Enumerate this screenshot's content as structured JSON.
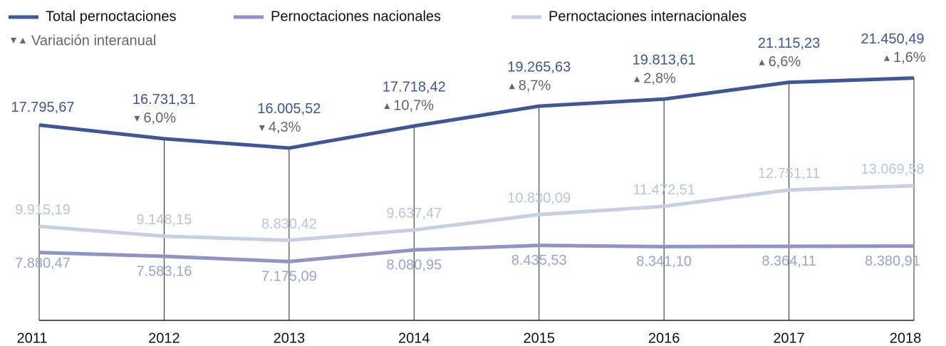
{
  "chart_data": {
    "type": "line",
    "categories": [
      "2011",
      "2012",
      "2013",
      "2014",
      "2015",
      "2016",
      "2017",
      "2018"
    ],
    "series": [
      {
        "name": "Total pernoctaciones",
        "color": "#3f5697",
        "label_color": "#3f5697",
        "values": [
          17795.67,
          16731.31,
          16005.52,
          17718.42,
          19265.63,
          19813.61,
          21115.23,
          21450.49
        ],
        "value_labels": [
          "17.795,67",
          "16.731,31",
          "16.005,52",
          "17.718,42",
          "19.265,63",
          "19.813,61",
          "21.115,23",
          "21.450,49"
        ]
      },
      {
        "name": "Pernoctaciones nacionales",
        "color": "#8e94c4",
        "label_color": "#9ea4cc",
        "values": [
          7880.47,
          7583.16,
          7175.09,
          8080.95,
          8435.53,
          8341.1,
          8364.11,
          8380.91
        ],
        "value_labels": [
          "7.880,47",
          "7.583,16",
          "7.175,09",
          "8.080,95",
          "8.435,53",
          "8.341,10",
          "8.364,11",
          "8.380,91"
        ]
      },
      {
        "name": "Pernoctaciones internacionales",
        "color": "#c5d1e0",
        "label_color": "#bac6d8",
        "values": [
          9915.19,
          9148.15,
          8830.42,
          9637.47,
          10830.09,
          11472.51,
          12751.11,
          13069.58
        ],
        "value_labels": [
          "9.915,19",
          "9.148,15",
          "8.830,42",
          "9.637,47",
          "10.830,09",
          "11.472,51",
          "12.751,11",
          "13.069,58"
        ]
      }
    ],
    "variation": {
      "name": "Variación interanual",
      "color": "#666666",
      "values": [
        null,
        -6.0,
        -4.3,
        10.7,
        8.7,
        2.8,
        6.6,
        1.6
      ],
      "value_labels": [
        null,
        "6,0%",
        "4,3%",
        "10,7%",
        "8,7%",
        "2,8%",
        "6,6%",
        "1,6%"
      ]
    }
  }
}
